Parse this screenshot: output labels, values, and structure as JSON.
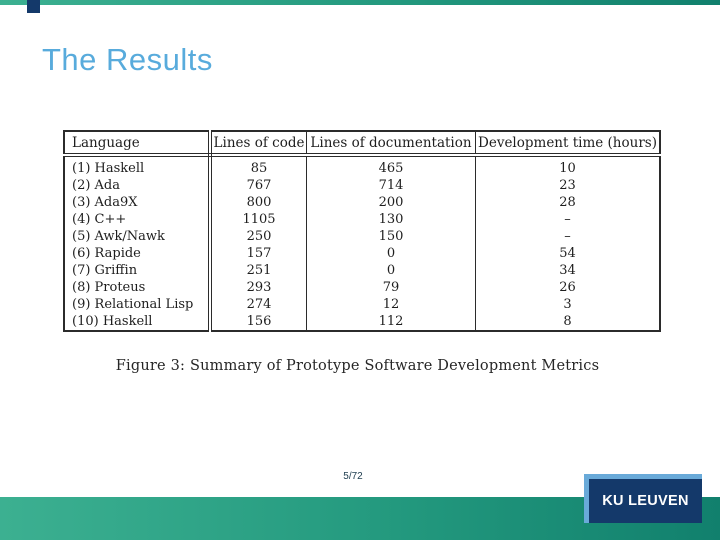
{
  "slide": {
    "title": "The Results",
    "page_number": "5/72",
    "logo_text": "KU LEUVEN"
  },
  "figure": {
    "caption": "Figure 3: Summary of Prototype Software Development Metrics",
    "table": {
      "columns": [
        "Language",
        "Lines of code",
        "Lines of documentation",
        "Development time (hours)"
      ],
      "rows": [
        [
          "(1) Haskell",
          "85",
          "465",
          "10"
        ],
        [
          "(2) Ada",
          "767",
          "714",
          "23"
        ],
        [
          "(3) Ada9X",
          "800",
          "200",
          "28"
        ],
        [
          "(4) C++",
          "1105",
          "130",
          "–"
        ],
        [
          "(5) Awk/Nawk",
          "250",
          "150",
          "–"
        ],
        [
          "(6) Rapide",
          "157",
          "0",
          "54"
        ],
        [
          "(7) Griffin",
          "251",
          "0",
          "34"
        ],
        [
          "(8) Proteus",
          "293",
          "79",
          "26"
        ],
        [
          "(9) Relational Lisp",
          "274",
          "12",
          "3"
        ],
        [
          "(10) Haskell",
          "156",
          "112",
          "8"
        ]
      ]
    }
  },
  "colors": {
    "title_blue": "#58abdc",
    "footer_teal_start": "#3cb091",
    "footer_teal_end": "#11806d",
    "logo_navy": "#14396a",
    "logo_accent_blue": "#69aad9",
    "page_number_text": "#1d3c4e"
  }
}
